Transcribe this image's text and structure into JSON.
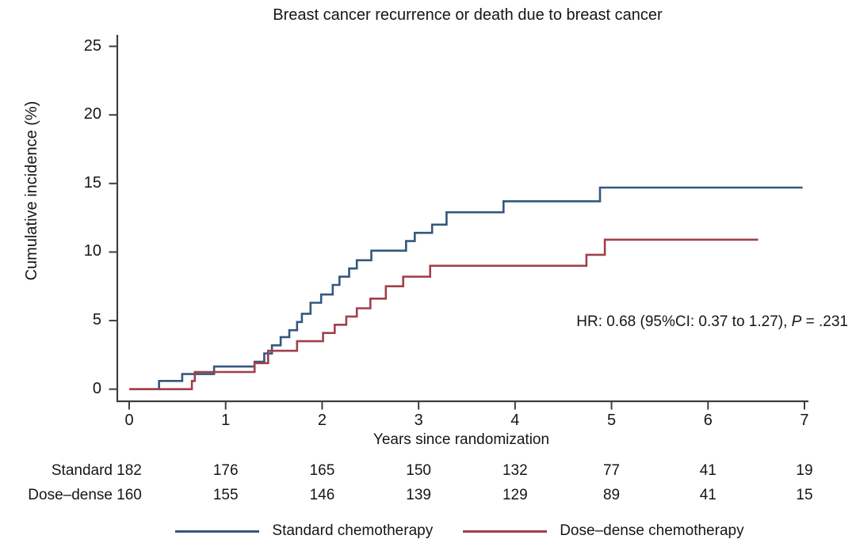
{
  "title": "Breast cancer recurrence or death due to breast cancer",
  "annotation": {
    "prefix": "HR: 0.68 (95%CI: 0.37 to 1.27), ",
    "p_label": "P",
    "suffix": " = .231"
  },
  "chart_data": {
    "type": "line",
    "subtype": "kaplan-meier-step",
    "title": "Breast cancer recurrence or death due to breast cancer",
    "xlabel": "Years since randomization",
    "ylabel": "Cumulative incidence (%)",
    "xlim": [
      0,
      7
    ],
    "ylim": [
      0,
      25
    ],
    "xticks": [
      0,
      1,
      2,
      3,
      4,
      5,
      6,
      7
    ],
    "yticks": [
      0,
      5,
      10,
      15,
      20,
      25
    ],
    "grid": false,
    "legend_position": "bottom",
    "annotation": "HR: 0.68 (95%CI: 0.37 to 1.27), P = .231",
    "series": [
      {
        "name": "Standard chemotherapy",
        "color": "#33587d",
        "end_x": 6.98,
        "steps": [
          [
            0,
            0
          ],
          [
            0.31,
            0.6
          ],
          [
            0.55,
            1.1
          ],
          [
            0.88,
            1.65
          ],
          [
            1.3,
            2.0
          ],
          [
            1.4,
            2.6
          ],
          [
            1.48,
            3.2
          ],
          [
            1.57,
            3.8
          ],
          [
            1.66,
            4.3
          ],
          [
            1.74,
            4.9
          ],
          [
            1.79,
            5.5
          ],
          [
            1.88,
            6.3
          ],
          [
            1.99,
            6.9
          ],
          [
            2.11,
            7.6
          ],
          [
            2.18,
            8.2
          ],
          [
            2.28,
            8.8
          ],
          [
            2.36,
            9.4
          ],
          [
            2.51,
            10.1
          ],
          [
            2.87,
            10.8
          ],
          [
            2.96,
            11.4
          ],
          [
            3.14,
            12.0
          ],
          [
            3.29,
            12.9
          ],
          [
            3.88,
            13.7
          ],
          [
            4.88,
            14.7
          ]
        ]
      },
      {
        "name": "Dose–dense chemotherapy",
        "color": "#a0404a",
        "end_x": 6.52,
        "steps": [
          [
            0,
            0
          ],
          [
            0.65,
            0.6
          ],
          [
            0.68,
            1.25
          ],
          [
            1.3,
            1.9
          ],
          [
            1.44,
            2.8
          ],
          [
            1.74,
            3.5
          ],
          [
            2.01,
            4.1
          ],
          [
            2.13,
            4.7
          ],
          [
            2.25,
            5.3
          ],
          [
            2.36,
            5.9
          ],
          [
            2.5,
            6.6
          ],
          [
            2.66,
            7.5
          ],
          [
            2.84,
            8.2
          ],
          [
            3.12,
            9.0
          ],
          [
            4.74,
            9.8
          ],
          [
            4.93,
            10.9
          ]
        ]
      }
    ]
  },
  "risk_table": {
    "rows": [
      {
        "label": "Standard",
        "counts": [
          "182",
          "176",
          "165",
          "150",
          "132",
          "77",
          "41",
          "19"
        ]
      },
      {
        "label": "Dose–dense",
        "counts": [
          "160",
          "155",
          "146",
          "139",
          "129",
          "89",
          "41",
          "15"
        ]
      }
    ]
  },
  "legend": {
    "items": [
      {
        "label": "Standard chemotherapy",
        "color": "#33587d"
      },
      {
        "label": "Dose–dense chemotherapy",
        "color": "#a0404a"
      }
    ]
  },
  "colors": {
    "axis": "#3f3f3f",
    "text": "#161616"
  }
}
